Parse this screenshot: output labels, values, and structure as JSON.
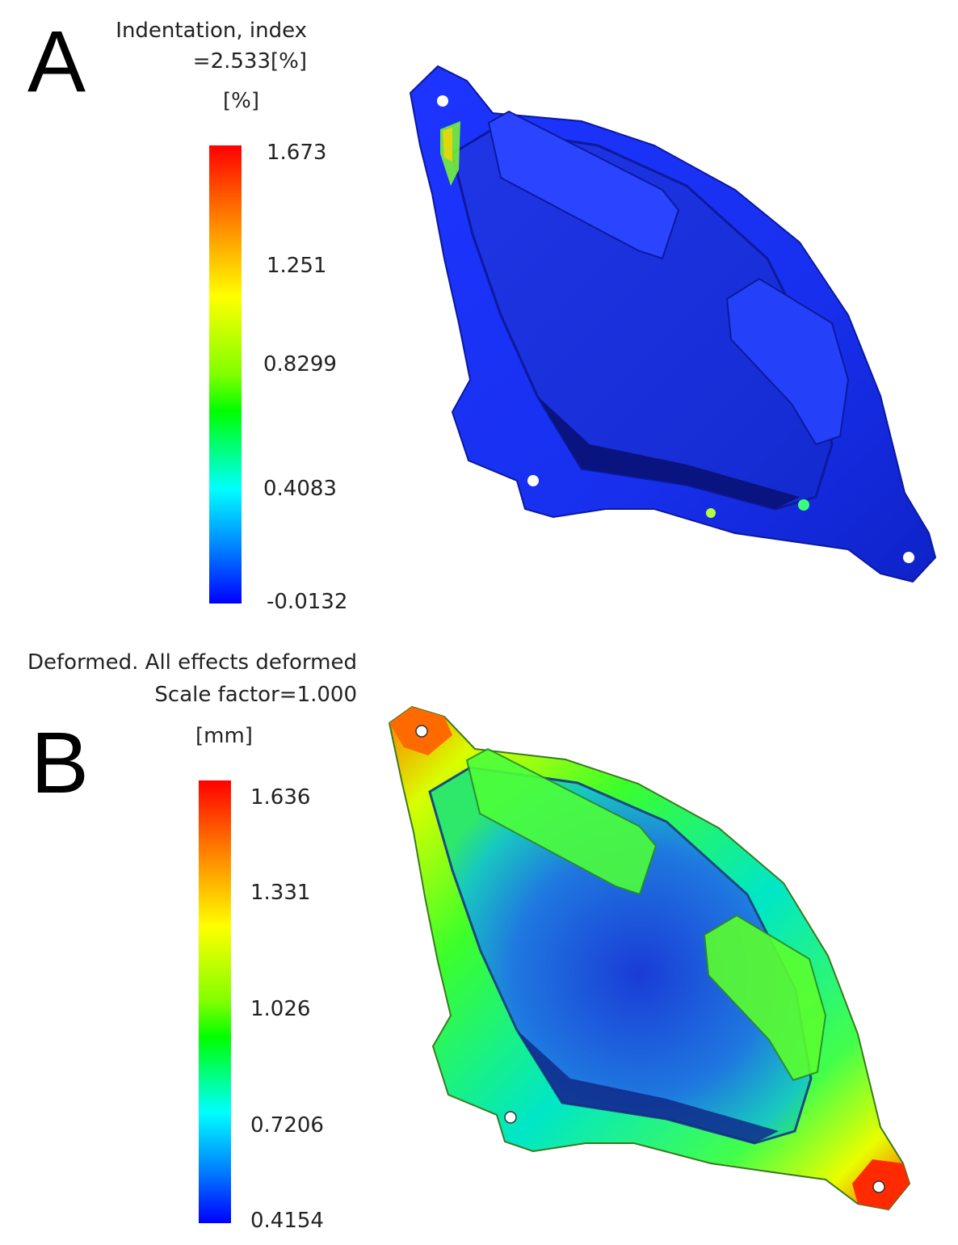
{
  "panels": [
    {
      "letter": "A",
      "title_lines": [
        "Indentation, index",
        "=2.533[%]"
      ],
      "unit": "[%]",
      "colorbar_ticks": [
        "1.673",
        "1.251",
        "0.8299",
        "0.4083",
        "-0.0132"
      ]
    },
    {
      "letter": "B",
      "title_lines": [
        "Deformed. All effects deformed",
        "Scale factor=1.000"
      ],
      "unit": "[mm]",
      "colorbar_ticks": [
        "1.636",
        "1.331",
        "1.026",
        "0.7206",
        "0.4154"
      ]
    }
  ],
  "colors": {
    "scale_high": "#ff0000",
    "scale_mid_high": "#ffff00",
    "scale_mid": "#00ff00",
    "scale_mid_low": "#00ffff",
    "scale_low": "#0000ff"
  }
}
